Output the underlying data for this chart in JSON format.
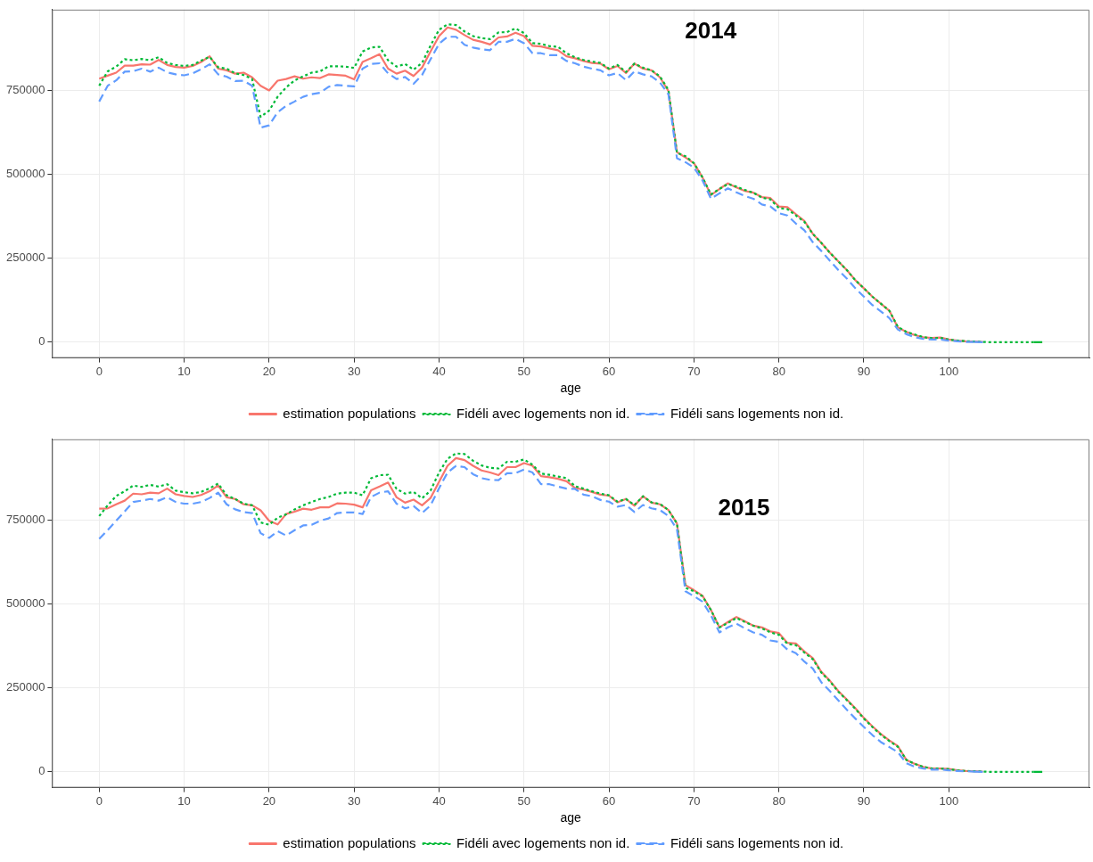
{
  "chart_data": [
    {
      "type": "line",
      "xlabel": "age",
      "annotations": [
        "2014"
      ],
      "xlim": [
        -5.55,
        116.55
      ],
      "ylim": [
        -47000,
        992000
      ],
      "xticks": [
        0,
        10,
        20,
        30,
        40,
        50,
        60,
        70,
        80,
        90,
        100
      ],
      "yticks": [
        0,
        250000,
        500000,
        750000
      ],
      "grid": true,
      "legend": "bottom",
      "marker": "none",
      "x": [
        0,
        1,
        2,
        3,
        4,
        5,
        6,
        7,
        8,
        9,
        10,
        11,
        12,
        13,
        14,
        15,
        16,
        17,
        18,
        19,
        20,
        21,
        22,
        23,
        24,
        25,
        26,
        27,
        28,
        29,
        30,
        31,
        32,
        33,
        34,
        35,
        36,
        37,
        38,
        39,
        40,
        41,
        42,
        43,
        44,
        45,
        46,
        47,
        48,
        49,
        50,
        51,
        52,
        53,
        54,
        55,
        56,
        57,
        58,
        59,
        60,
        61,
        62,
        63,
        64,
        65,
        66,
        67,
        68,
        69,
        70,
        71,
        72,
        73,
        74,
        75,
        76,
        77,
        78,
        79,
        80,
        81,
        82,
        83,
        84,
        85,
        86,
        87,
        88,
        89,
        90,
        91,
        92,
        93,
        94,
        95,
        96,
        97,
        98,
        99,
        100,
        101,
        102,
        103,
        104,
        105,
        106,
        107,
        108,
        109,
        110,
        111
      ],
      "series": [
        {
          "name": "estimation populations",
          "color": "#f8766d",
          "line_style": "solid",
          "values": [
            786000,
            795000,
            804000,
            825000,
            825000,
            829000,
            828000,
            842000,
            827000,
            821000,
            819000,
            824000,
            836000,
            853000,
            816000,
            811000,
            801000,
            804000,
            790000,
            765000,
            751000,
            780000,
            785000,
            793000,
            786000,
            790000,
            788000,
            799000,
            797000,
            795000,
            784000,
            836000,
            847000,
            859000,
            816000,
            801000,
            810000,
            794000,
            819000,
            867000,
            913000,
            939000,
            932000,
            916000,
            902000,
            896000,
            888000,
            909000,
            912000,
            923000,
            913000,
            884000,
            882000,
            876000,
            871000,
            853000,
            847000,
            839000,
            833000,
            831000,
            814000,
            824000,
            803000,
            831000,
            816000,
            811000,
            790000,
            749000,
            567000,
            551000,
            534000,
            492000,
            439000,
            457000,
            474000,
            462000,
            451000,
            446000,
            433000,
            430000,
            405000,
            403000,
            382000,
            362000,
            323000,
            296000,
            267000,
            241000,
            215000,
            185000,
            161000,
            136000,
            115000,
            94000,
            44000,
            31000,
            21000,
            15000,
            13000,
            14000,
            8000,
            5000,
            3000,
            2000,
            1000,
            null,
            null,
            null,
            null,
            null,
            null,
            null
          ]
        },
        {
          "name": "Fidéli avec logements non id.",
          "color": "#00ba38",
          "line_style": "dotted",
          "values": [
            765000,
            808000,
            822000,
            844000,
            841000,
            845000,
            841000,
            850000,
            833000,
            827000,
            824000,
            827000,
            840000,
            851000,
            820000,
            816000,
            802000,
            797000,
            785000,
            672000,
            691000,
            732000,
            760000,
            781000,
            793000,
            804000,
            808000,
            823000,
            823000,
            822000,
            818000,
            867000,
            879000,
            881000,
            841000,
            822000,
            830000,
            813000,
            833000,
            885000,
            932000,
            948000,
            946000,
            927000,
            913000,
            907000,
            904000,
            924000,
            925000,
            936000,
            922000,
            892000,
            890000,
            883000,
            881000,
            862000,
            850000,
            842000,
            837000,
            833000,
            816000,
            827000,
            806000,
            831000,
            819000,
            811000,
            793000,
            752000,
            565000,
            555000,
            534000,
            492000,
            441000,
            457000,
            472000,
            464000,
            454000,
            446000,
            431000,
            426000,
            400000,
            397000,
            378000,
            359000,
            323000,
            296000,
            267000,
            241000,
            215000,
            185000,
            161000,
            136000,
            115000,
            94000,
            46000,
            31000,
            23000,
            15000,
            12000,
            13000,
            8000,
            5000,
            3000,
            2000,
            1000,
            0,
            0,
            0,
            0,
            0,
            0,
            0
          ]
        },
        {
          "name": "Fidéli sans logements non id.",
          "color": "#619cff",
          "line_style": "dashed",
          "values": [
            718000,
            765000,
            781000,
            807000,
            808000,
            816000,
            807000,
            819000,
            805000,
            799000,
            796000,
            802000,
            814000,
            829000,
            799000,
            792000,
            779000,
            780000,
            765000,
            640000,
            647000,
            686000,
            705000,
            718000,
            732000,
            740000,
            744000,
            762000,
            767000,
            765000,
            763000,
            816000,
            830000,
            832000,
            802000,
            785000,
            791000,
            771000,
            797000,
            844000,
            890000,
            911000,
            911000,
            887000,
            879000,
            874000,
            871000,
            896000,
            896000,
            905000,
            892000,
            862000,
            862000,
            856000,
            856000,
            839000,
            832000,
            822000,
            816000,
            811000,
            796000,
            803000,
            782000,
            808000,
            799000,
            793000,
            775000,
            739000,
            549000,
            537000,
            521000,
            483000,
            428000,
            444000,
            459000,
            447000,
            436000,
            428000,
            411000,
            405000,
            385000,
            378000,
            354000,
            334000,
            298000,
            272000,
            243000,
            215000,
            190000,
            161000,
            136000,
            111000,
            92000,
            72000,
            38000,
            24000,
            15000,
            10000,
            8000,
            8000,
            5000,
            3000,
            1000,
            1000,
            0,
            null,
            null,
            null,
            null,
            null,
            null,
            null
          ]
        }
      ]
    },
    {
      "type": "line",
      "xlabel": "age",
      "annotations": [
        "2015"
      ],
      "xlim": [
        -5.55,
        116.55
      ],
      "ylim": [
        -47000,
        992000
      ],
      "xticks": [
        0,
        10,
        20,
        30,
        40,
        50,
        60,
        70,
        80,
        90,
        100
      ],
      "yticks": [
        0,
        250000,
        500000,
        750000
      ],
      "grid": true,
      "legend": "bottom",
      "marker": "none",
      "x": [
        0,
        1,
        2,
        3,
        4,
        5,
        6,
        7,
        8,
        9,
        10,
        11,
        12,
        13,
        14,
        15,
        16,
        17,
        18,
        19,
        20,
        21,
        22,
        23,
        24,
        25,
        26,
        27,
        28,
        29,
        30,
        31,
        32,
        33,
        34,
        35,
        36,
        37,
        38,
        39,
        40,
        41,
        42,
        43,
        44,
        45,
        46,
        47,
        48,
        49,
        50,
        51,
        52,
        53,
        54,
        55,
        56,
        57,
        58,
        59,
        60,
        61,
        62,
        63,
        64,
        65,
        66,
        67,
        68,
        69,
        70,
        71,
        72,
        73,
        74,
        75,
        76,
        77,
        78,
        79,
        80,
        81,
        82,
        83,
        84,
        85,
        86,
        87,
        88,
        89,
        90,
        91,
        92,
        93,
        94,
        95,
        96,
        97,
        98,
        99,
        100,
        101,
        102,
        103,
        104,
        105,
        106,
        107,
        108,
        109,
        110,
        111
      ],
      "series": [
        {
          "name": "estimation populations",
          "color": "#f8766d",
          "line_style": "solid",
          "values": [
            785000,
            786000,
            798000,
            809000,
            830000,
            828000,
            833000,
            831000,
            845000,
            828000,
            823000,
            820000,
            826000,
            837000,
            854000,
            819000,
            814000,
            798000,
            795000,
            780000,
            749000,
            738000,
            769000,
            776000,
            785000,
            782000,
            789000,
            789000,
            801000,
            800000,
            797000,
            789000,
            840000,
            851000,
            863000,
            819000,
            803000,
            812000,
            795000,
            817000,
            865000,
            913000,
            936000,
            930000,
            913000,
            899000,
            893000,
            885000,
            909000,
            909000,
            921000,
            913000,
            882000,
            879000,
            874000,
            867000,
            847000,
            842000,
            835000,
            827000,
            824000,
            804000,
            814000,
            794000,
            822000,
            803000,
            798000,
            781000,
            741000,
            557000,
            542000,
            526000,
            483000,
            431000,
            447000,
            462000,
            449000,
            436000,
            431000,
            419000,
            414000,
            385000,
            383000,
            359000,
            339000,
            298000,
            272000,
            241000,
            216000,
            190000,
            161000,
            136000,
            113000,
            94000,
            77000,
            36000,
            24000,
            15000,
            10000,
            10000,
            9000,
            5000,
            3000,
            2000,
            1000,
            null,
            null,
            null,
            null,
            null,
            null,
            null
          ]
        },
        {
          "name": "Fidéli avec logements non id.",
          "color": "#00ba38",
          "line_style": "dotted",
          "values": [
            763000,
            795000,
            823000,
            837000,
            854000,
            850000,
            856000,
            851000,
            858000,
            839000,
            834000,
            831000,
            835000,
            846000,
            860000,
            825000,
            814000,
            800000,
            795000,
            744000,
            737000,
            758000,
            768000,
            783000,
            795000,
            805000,
            814000,
            820000,
            830000,
            833000,
            833000,
            825000,
            876000,
            885000,
            886000,
            844000,
            830000,
            835000,
            816000,
            839000,
            893000,
            934000,
            950000,
            948000,
            928000,
            914000,
            907000,
            905000,
            925000,
            925000,
            932000,
            916000,
            890000,
            886000,
            881000,
            876000,
            852000,
            845000,
            837000,
            830000,
            825000,
            806000,
            814000,
            796000,
            822000,
            804000,
            799000,
            781000,
            741000,
            549000,
            539000,
            524000,
            483000,
            431000,
            444000,
            459000,
            447000,
            436000,
            428000,
            416000,
            409000,
            382000,
            378000,
            356000,
            336000,
            296000,
            270000,
            239000,
            214000,
            188000,
            159000,
            134000,
            111000,
            92000,
            75000,
            36000,
            24000,
            15000,
            10000,
            10000,
            8000,
            5000,
            3000,
            2000,
            1000,
            0,
            0,
            0,
            0,
            0,
            0,
            0
          ]
        },
        {
          "name": "Fidéli sans logements non id.",
          "color": "#619cff",
          "line_style": "dashed",
          "values": [
            695000,
            721000,
            749000,
            777000,
            805000,
            809000,
            814000,
            809000,
            819000,
            805000,
            800000,
            800000,
            805000,
            817000,
            833000,
            798000,
            783000,
            775000,
            772000,
            712000,
            698000,
            718000,
            705000,
            721000,
            735000,
            737000,
            749000,
            756000,
            772000,
            774000,
            774000,
            769000,
            820000,
            833000,
            837000,
            800000,
            786000,
            793000,
            772000,
            795000,
            846000,
            893000,
            913000,
            909000,
            888000,
            876000,
            871000,
            870000,
            891000,
            891000,
            902000,
            893000,
            858000,
            858000,
            851000,
            845000,
            844000,
            827000,
            822000,
            811000,
            806000,
            791000,
            796000,
            775000,
            796000,
            786000,
            781000,
            763000,
            724000,
            539000,
            524000,
            508000,
            467000,
            416000,
            431000,
            442000,
            428000,
            416000,
            409000,
            392000,
            388000,
            365000,
            354000,
            329000,
            308000,
            267000,
            241000,
            213000,
            185000,
            159000,
            134000,
            110000,
            89000,
            74000,
            59000,
            26000,
            15000,
            10000,
            7000,
            7000,
            5000,
            3000,
            2000,
            1000,
            0,
            null,
            null,
            null,
            null,
            null,
            null,
            null
          ]
        }
      ]
    }
  ]
}
